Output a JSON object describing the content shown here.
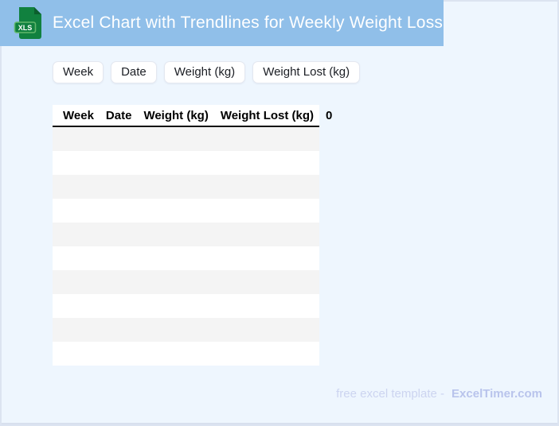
{
  "header": {
    "title": "Excel Chart with Trendlines for Weekly Weight Loss",
    "file_badge": "XLS"
  },
  "chips": {
    "items": [
      {
        "label": "Week"
      },
      {
        "label": "Date"
      },
      {
        "label": "Weight (kg)"
      },
      {
        "label": "Weight Lost (kg)"
      }
    ]
  },
  "table": {
    "columns": [
      "Week",
      "Date",
      "Weight (kg)",
      "Weight Lost (kg)",
      "0"
    ],
    "row_count": 10,
    "rows_empty": true
  },
  "footer": {
    "prefix": "free excel template -",
    "brand": "ExcelTimer.com"
  },
  "colors": {
    "header_bar": "#90bfe9",
    "page_bg": "#eef6fe",
    "page_border": "#dce4f1",
    "page_border_bottom": "#d8e0ee",
    "stripe": "#f4f4f4",
    "icon_green": "#11813f",
    "icon_green_dark": "#0b5f2d",
    "badge_border": "#62b76b",
    "footer_text": "#ccd4f0",
    "footer_brand": "#b9c4ec"
  }
}
